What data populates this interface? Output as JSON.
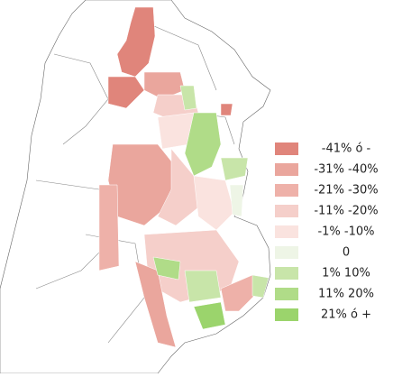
{
  "legend": [
    {
      "label": "-41% ó -",
      "color": "#e0857b"
    },
    {
      "label": "-31% -40%",
      "color": "#eaa69d"
    },
    {
      "label": "-21% -30%",
      "color": "#eeb1a9"
    },
    {
      "label": "-11% -20%",
      "color": "#f5cfca"
    },
    {
      "label": "-1% -10%",
      "color": "#fae3df"
    },
    {
      "label": "0",
      "color": "#eef5e6"
    },
    {
      "label": "1% 10%",
      "color": "#c8e5a9"
    },
    {
      "label": "11% 20%",
      "color": "#b0dc88"
    },
    {
      "label": "21% ó +",
      "color": "#9bd46c"
    }
  ]
}
